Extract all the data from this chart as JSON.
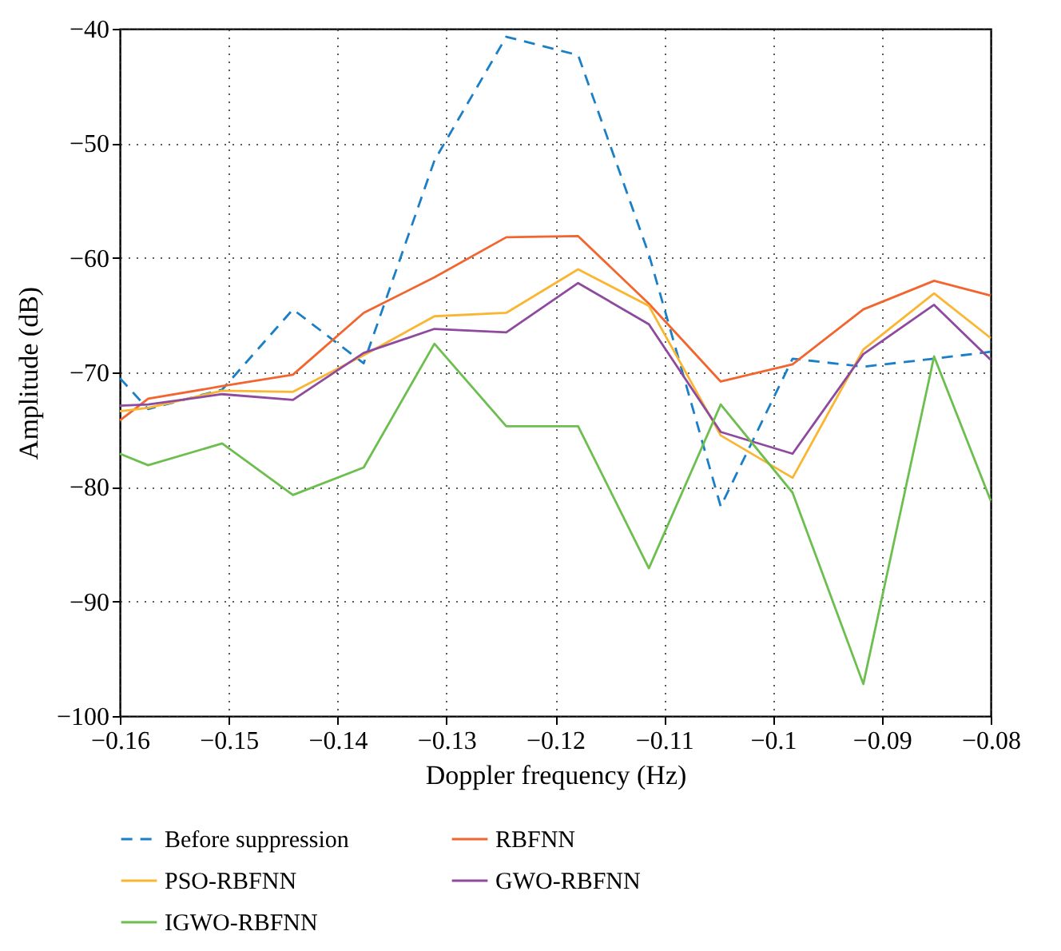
{
  "chart_data": {
    "type": "line",
    "xlabel": "Doppler frequency (Hz)",
    "ylabel": "Amplitude (dB)",
    "x": [
      -0.16,
      -0.1574,
      -0.1506,
      -0.1441,
      -0.1376,
      -0.1311,
      -0.1245,
      -0.1179,
      -0.1114,
      -0.1048,
      -0.0982,
      -0.0917,
      -0.0852,
      -0.08
    ],
    "xlim": [
      -0.16,
      -0.08
    ],
    "xticks": [
      -0.16,
      -0.15,
      -0.14,
      -0.13,
      -0.12,
      -0.11,
      {
        "value": -0.1,
        "label": "−0.1"
      },
      -0.09,
      -0.08
    ],
    "ylim": [
      -100,
      -40
    ],
    "yticks": [
      -100,
      -90,
      -80,
      -70,
      -60,
      -50,
      -40
    ],
    "grid": true,
    "legend": "bottom",
    "marker": "none",
    "series": [
      {
        "name": "Before suppression",
        "color": "#1a7fc7",
        "line_style": "dashed",
        "values": [
          -70.5,
          -73.2,
          -71.5,
          -64.5,
          -69.2,
          -51.5,
          -40.7,
          -42.3,
          -59.7,
          -81.7,
          -68.8,
          -69.5,
          -68.8,
          -68.2
        ]
      },
      {
        "name": "RBFNN",
        "color": "#f2652f",
        "line_style": "solid",
        "values": [
          -74.2,
          -72.3,
          -71.2,
          -70.2,
          -64.8,
          -61.7,
          -58.2,
          -58.1,
          -64.0,
          -70.8,
          -69.3,
          -64.5,
          -62.0,
          -63.3
        ]
      },
      {
        "name": "PSO-RBFNN",
        "color": "#fbb631",
        "line_style": "solid",
        "values": [
          -73.4,
          -73.1,
          -71.6,
          -71.7,
          -68.5,
          -65.1,
          -64.8,
          -61.0,
          -64.2,
          -75.5,
          -79.2,
          -68.0,
          -63.1,
          -67.0
        ]
      },
      {
        "name": "GWO-RBFNN",
        "color": "#8e4a9e",
        "line_style": "solid",
        "values": [
          -72.9,
          -72.8,
          -71.9,
          -72.4,
          -68.3,
          -66.2,
          -66.5,
          -62.2,
          -65.8,
          -75.2,
          -77.1,
          -68.4,
          -64.1,
          -68.9
        ]
      },
      {
        "name": "IGWO-RBFNN",
        "color": "#6cbf4f",
        "line_style": "solid",
        "values": [
          -77.1,
          -78.1,
          -76.2,
          -80.7,
          -78.3,
          -67.5,
          -74.7,
          -74.7,
          -87.1,
          -72.8,
          -80.5,
          -97.2,
          -68.6,
          -81.2
        ]
      }
    ]
  }
}
